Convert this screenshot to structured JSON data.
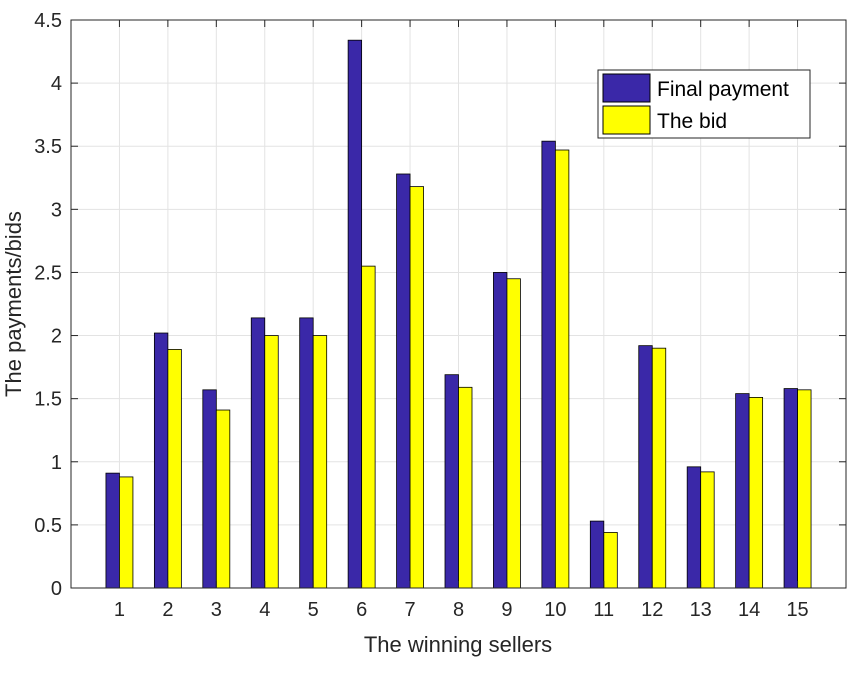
{
  "chart_data": {
    "type": "bar",
    "title": "",
    "xlabel": "The winning sellers",
    "ylabel": "The payments/bids",
    "categories": [
      "1",
      "2",
      "3",
      "4",
      "5",
      "6",
      "7",
      "8",
      "9",
      "10",
      "11",
      "12",
      "13",
      "14",
      "15"
    ],
    "series": [
      {
        "name": "Final payment",
        "color": "#3a28a8",
        "values": [
          0.91,
          2.02,
          1.57,
          2.14,
          2.14,
          4.34,
          3.28,
          1.69,
          2.5,
          3.54,
          0.53,
          1.92,
          0.96,
          1.54,
          1.58
        ]
      },
      {
        "name": "The bid",
        "color": "#ffff00",
        "values": [
          0.88,
          1.89,
          1.41,
          2.0,
          2.0,
          2.55,
          3.18,
          1.59,
          2.45,
          3.47,
          0.44,
          1.9,
          0.92,
          1.51,
          1.57
        ]
      }
    ],
    "ylim": [
      0,
      4.5
    ],
    "yticks": [
      "0",
      "0.5",
      "1",
      "1.5",
      "2",
      "2.5",
      "3",
      "3.5",
      "4",
      "4.5"
    ],
    "grid": true,
    "legend_position": "top-right"
  }
}
